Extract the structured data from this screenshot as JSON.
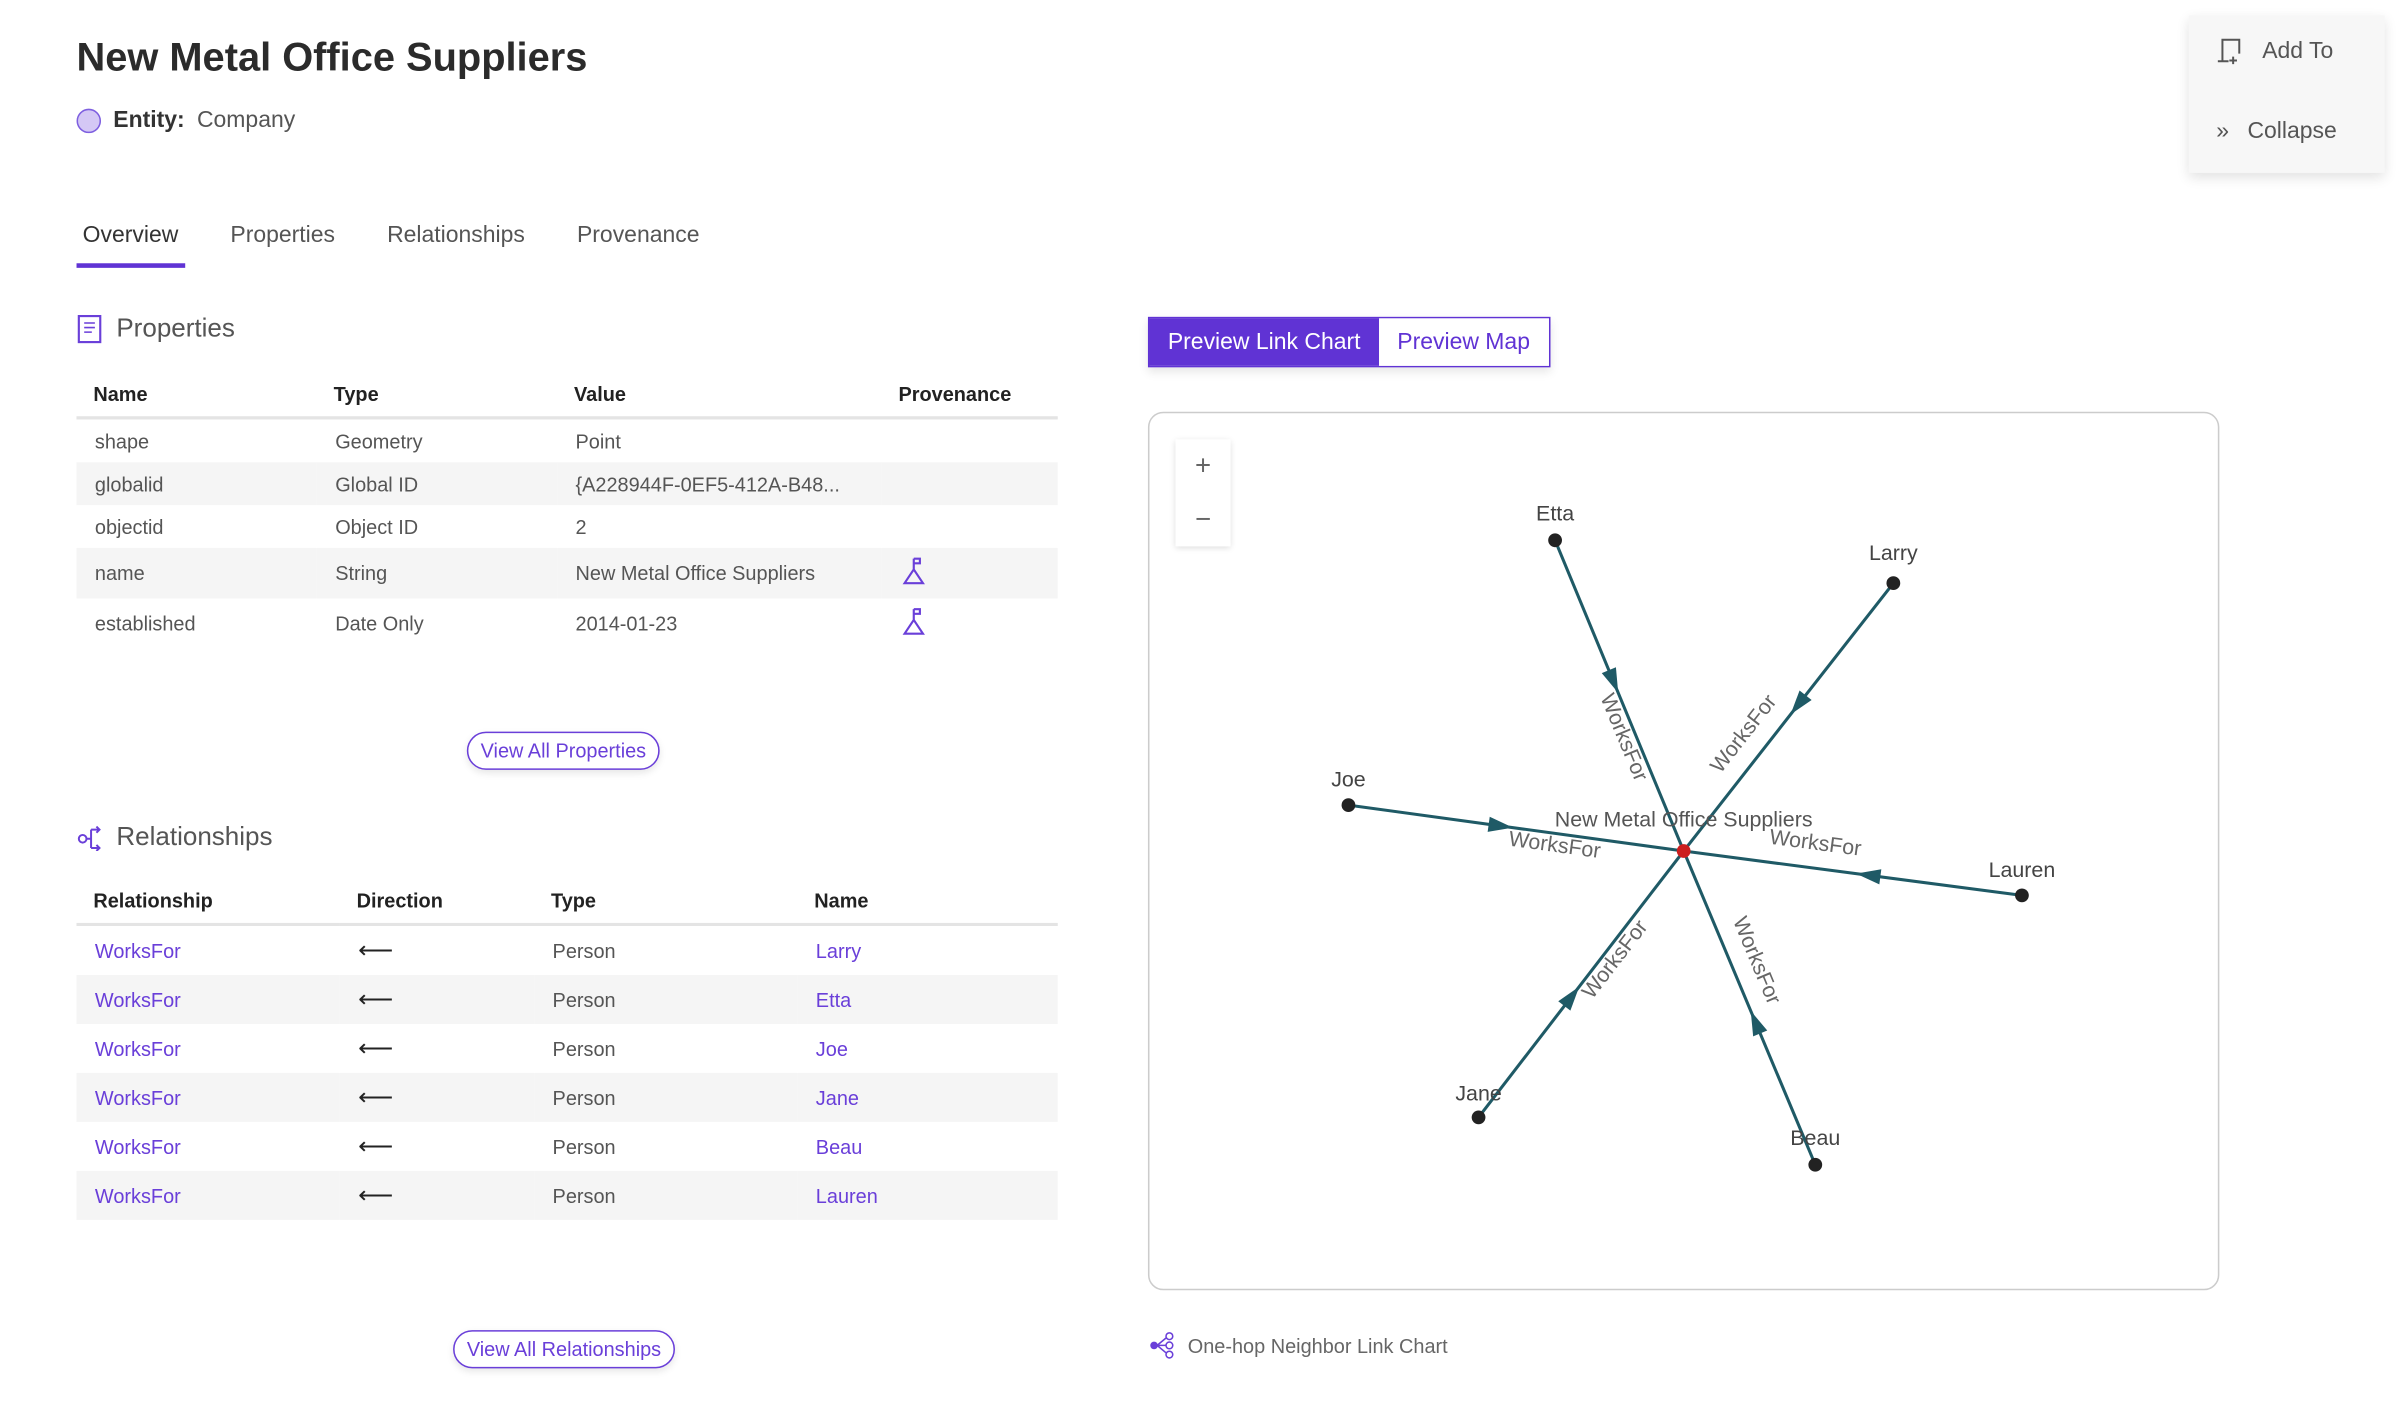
{
  "header": {
    "title": "New Metal Office Suppliers",
    "entity_label": "Entity:",
    "entity_value": "Company"
  },
  "tabs": [
    {
      "label": "Overview",
      "active": true
    },
    {
      "label": "Properties"
    },
    {
      "label": "Relationships"
    },
    {
      "label": "Provenance"
    }
  ],
  "side_panel": {
    "add_to": "Add To",
    "collapse": "Collapse"
  },
  "properties": {
    "title": "Properties",
    "columns": [
      "Name",
      "Type",
      "Value",
      "Provenance"
    ],
    "rows": [
      {
        "name": "shape",
        "type": "Geometry",
        "value": "Point",
        "provenance": false
      },
      {
        "name": "globalid",
        "type": "Global ID",
        "value": "{A228944F-0EF5-412A-B48...",
        "provenance": false
      },
      {
        "name": "objectid",
        "type": "Object ID",
        "value": "2",
        "provenance": false
      },
      {
        "name": "name",
        "type": "String",
        "value": "New Metal Office Suppliers",
        "provenance": true
      },
      {
        "name": "established",
        "type": "Date Only",
        "value": "2014-01-23",
        "provenance": true
      }
    ],
    "view_all": "View All Properties"
  },
  "relationships": {
    "title": "Relationships",
    "columns": [
      "Relationship",
      "Direction",
      "Type",
      "Name"
    ],
    "rows": [
      {
        "relationship": "WorksFor",
        "direction": "⟵",
        "type": "Person",
        "name": "Larry"
      },
      {
        "relationship": "WorksFor",
        "direction": "⟵",
        "type": "Person",
        "name": "Etta"
      },
      {
        "relationship": "WorksFor",
        "direction": "⟵",
        "type": "Person",
        "name": "Joe"
      },
      {
        "relationship": "WorksFor",
        "direction": "⟵",
        "type": "Person",
        "name": "Jane"
      },
      {
        "relationship": "WorksFor",
        "direction": "⟵",
        "type": "Person",
        "name": "Beau"
      },
      {
        "relationship": "WorksFor",
        "direction": "⟵",
        "type": "Person",
        "name": "Lauren"
      }
    ],
    "view_all": "View All Relationships"
  },
  "preview": {
    "link_chart": "Preview Link Chart",
    "map": "Preview Map",
    "active": "link_chart",
    "zoom_in": "+",
    "zoom_out": "−",
    "footer": "One-hop Neighbor Link Chart"
  },
  "link_chart": {
    "center": "New Metal Office Suppliers",
    "center_color": "#cc1f1f",
    "edge_color": "#1f5a66",
    "edge_label": "WorksFor",
    "nodes": [
      "Etta",
      "Larry",
      "Joe",
      "Lauren",
      "Jane",
      "Beau"
    ]
  },
  "colors": {
    "accent": "#6033d4",
    "link": "#6a3fd9"
  }
}
